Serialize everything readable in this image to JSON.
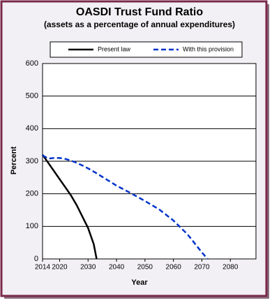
{
  "chart_data": {
    "type": "line",
    "title": "OASDI Trust Fund Ratio",
    "subtitle": "(assets as a percentage of annual expenditures)",
    "y_label": "Percent",
    "x_label": "Year",
    "x": [
      2014,
      2016,
      2018,
      2020,
      2022,
      2024,
      2026,
      2028,
      2030,
      2032,
      2033,
      2035,
      2040,
      2045,
      2050,
      2055,
      2060,
      2065,
      2070,
      2072
    ],
    "series": [
      {
        "name": "Present law",
        "color": "#000000",
        "dash": false,
        "values": [
          320,
          295,
          270,
          245,
          220,
          195,
          165,
          130,
          95,
          45,
          0,
          null,
          null,
          null,
          null,
          null,
          null,
          null,
          null,
          null
        ]
      },
      {
        "name": "With this provision",
        "color": "#0033cc",
        "dash": true,
        "values": [
          318,
          308,
          310,
          310,
          307,
          302,
          295,
          287,
          278,
          268,
          263,
          252,
          225,
          202,
          178,
          152,
          118,
          75,
          20,
          0
        ]
      }
    ],
    "xlim": [
      2014,
      2089
    ],
    "xticks": [
      2014,
      2020,
      2030,
      2040,
      2050,
      2060,
      2070,
      2080
    ],
    "ylim": [
      0,
      600
    ],
    "yticks": [
      0,
      100,
      200,
      300,
      400,
      500,
      600
    ],
    "grid": true,
    "legend": "top"
  }
}
